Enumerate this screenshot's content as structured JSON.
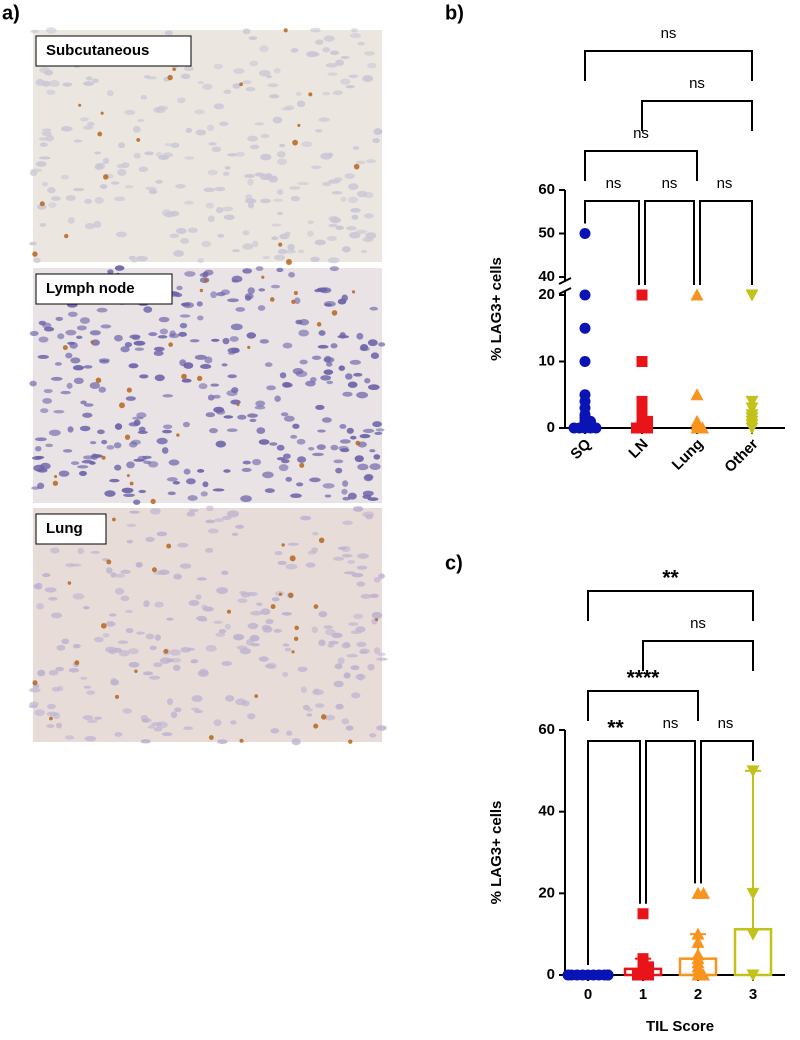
{
  "figure": {
    "panel_labels": [
      "a)",
      "b)",
      "c)"
    ],
    "image_labels": [
      "Subcutaneous",
      "Lymph node",
      "Lung"
    ]
  },
  "chart_data": [
    {
      "type": "dotplot",
      "ylabel": "% LAG3+ cells",
      "categories": [
        "SQ",
        "LN",
        "Lung",
        "Other"
      ],
      "colors": [
        "#0a14b4",
        "#e8141a",
        "#f7941d",
        "#c2c21a"
      ],
      "markers": [
        "circle",
        "square",
        "triangle",
        "triangle-down"
      ],
      "points": [
        [
          50,
          20,
          15,
          10,
          5,
          4,
          3,
          2,
          1.5,
          1,
          1,
          0.5,
          0.5,
          0,
          0,
          0,
          0,
          0
        ],
        [
          20,
          10,
          4,
          3,
          2,
          1.5,
          1,
          1,
          0.5,
          0,
          0,
          0
        ],
        [
          20,
          5,
          1,
          0.5,
          0,
          0
        ],
        [
          20,
          4,
          3,
          2,
          1.5,
          1,
          0.5,
          0
        ]
      ],
      "ylim": [
        0,
        60
      ],
      "ybreak": [
        20,
        40
      ],
      "yticks": [
        0,
        10,
        20,
        40,
        50,
        60
      ],
      "comparisons": [
        {
          "groups": [
            "SQ",
            "LN"
          ],
          "label": "ns"
        },
        {
          "groups": [
            "LN",
            "Lung"
          ],
          "label": "ns"
        },
        {
          "groups": [
            "Lung",
            "Other"
          ],
          "label": "ns"
        },
        {
          "groups": [
            "SQ",
            "Lung"
          ],
          "label": "ns"
        },
        {
          "groups": [
            "LN",
            "Other"
          ],
          "label": "ns"
        },
        {
          "groups": [
            "SQ",
            "Other"
          ],
          "label": "ns"
        }
      ]
    },
    {
      "type": "barplot",
      "ylabel": "% LAG3+ cells",
      "xlabel": "TIL Score",
      "categories": [
        "0",
        "1",
        "2",
        "3"
      ],
      "colors": [
        "#0a14b4",
        "#e8141a",
        "#f7941d",
        "#c2c21a"
      ],
      "markers": [
        "circle",
        "square",
        "triangle",
        "triangle-down"
      ],
      "points": [
        [
          0,
          0,
          0,
          0,
          0,
          0,
          0,
          0,
          0,
          0
        ],
        [
          15,
          4,
          3,
          2,
          2,
          1,
          1,
          0.5,
          0,
          0,
          0
        ],
        [
          20,
          20,
          10,
          8,
          5,
          4,
          3,
          2,
          1,
          0,
          0
        ],
        [
          50,
          20,
          10,
          0
        ]
      ],
      "bars": [
        0,
        1.5,
        4,
        11.2
      ],
      "error_high": [
        0,
        4,
        10,
        50
      ],
      "ylim": [
        0,
        60
      ],
      "yticks": [
        0,
        20,
        40,
        60
      ],
      "comparisons": [
        {
          "groups": [
            "0",
            "1"
          ],
          "label": "**"
        },
        {
          "groups": [
            "1",
            "2"
          ],
          "label": "ns"
        },
        {
          "groups": [
            "2",
            "3"
          ],
          "label": "ns"
        },
        {
          "groups": [
            "0",
            "2"
          ],
          "label": "****"
        },
        {
          "groups": [
            "1",
            "3"
          ],
          "label": "ns"
        },
        {
          "groups": [
            "0",
            "3"
          ],
          "label": "**"
        }
      ]
    }
  ]
}
